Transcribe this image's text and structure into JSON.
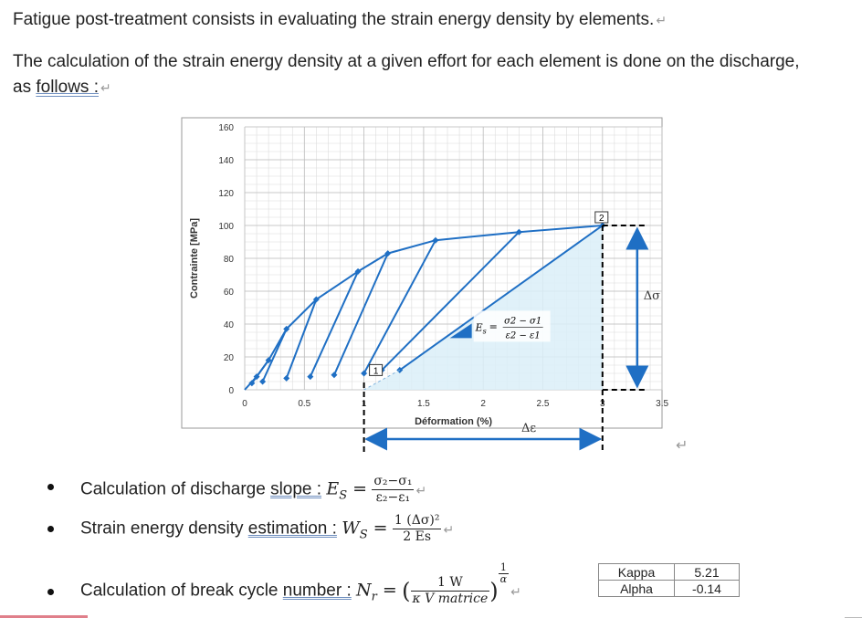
{
  "doc": {
    "para1": "Fatigue post-treatment consists in evaluating the strain energy density by elements.",
    "para2_line1": "The calculation of the strain energy density at a given effort for each element is done on the discharge,",
    "para2_line2_prefix": "as ",
    "para2_line2_link": "follows :",
    "return_mark": "↵"
  },
  "bullets": [
    {
      "prefix": "Calculation of discharge ",
      "link": "slope :",
      "symbol": "E",
      "sub": "S",
      "eq": " =",
      "num": "σ₂−σ₁",
      "den": "ε₂−ε₁"
    },
    {
      "prefix": "Strain energy density ",
      "link": "estimation :",
      "symbol": "W",
      "sub": "S",
      "eq": " =",
      "num": "1 (Δσ)²",
      "den": "2   Es"
    },
    {
      "prefix": "Calculation of break cycle ",
      "link": "number :",
      "symbol": "N",
      "sub": "r",
      "eq": " =",
      "num": "1      W",
      "den": "κ V matrice",
      "power_num": "1",
      "power_den": "α"
    }
  ],
  "params": {
    "rows": [
      {
        "name": "Kappa",
        "value": "5.21"
      },
      {
        "name": "Alpha",
        "value": "-0.14"
      }
    ]
  },
  "chart_data": {
    "type": "line",
    "ylabel": "Contrainte [MPa]",
    "xlabel": "Déformation (%)",
    "xlim": [
      0,
      3.5
    ],
    "ylim": [
      0,
      160
    ],
    "xticks": [
      "0",
      "0.5",
      "1",
      "1.5",
      "2",
      "2.5",
      "3",
      "3.5"
    ],
    "yticks": [
      "0",
      "20",
      "40",
      "60",
      "80",
      "100",
      "120",
      "140",
      "160"
    ],
    "loading_curve": {
      "x": [
        0,
        0.1,
        0.2,
        0.35,
        0.6,
        0.95,
        1.2,
        1.6,
        2.3,
        3.0
      ],
      "y": [
        0,
        8,
        18,
        37,
        55,
        72,
        83,
        91,
        96,
        100
      ]
    },
    "unloading_lines": [
      {
        "from": [
          0.2,
          18
        ],
        "to": [
          0.06,
          4
        ]
      },
      {
        "from": [
          0.35,
          37
        ],
        "to": [
          0.15,
          5
        ]
      },
      {
        "from": [
          0.6,
          55
        ],
        "to": [
          0.35,
          7
        ]
      },
      {
        "from": [
          0.95,
          72
        ],
        "to": [
          0.55,
          8
        ]
      },
      {
        "from": [
          1.2,
          83
        ],
        "to": [
          0.75,
          9
        ]
      },
      {
        "from": [
          1.6,
          91
        ],
        "to": [
          1.0,
          10
        ]
      },
      {
        "from": [
          2.3,
          96
        ],
        "to": [
          1.15,
          12
        ]
      },
      {
        "from": [
          3.0,
          100
        ],
        "to": [
          1.3,
          12
        ]
      }
    ],
    "annotations": {
      "box1": "1",
      "box2": "2",
      "delta_sigma": "Δσ",
      "delta_eps": "Δε",
      "slope_label": "E",
      "slope_sub": "s",
      "slope_eq": "=",
      "slope_num": "σ2 − σ1",
      "slope_den": "ε2 − ε1"
    }
  }
}
